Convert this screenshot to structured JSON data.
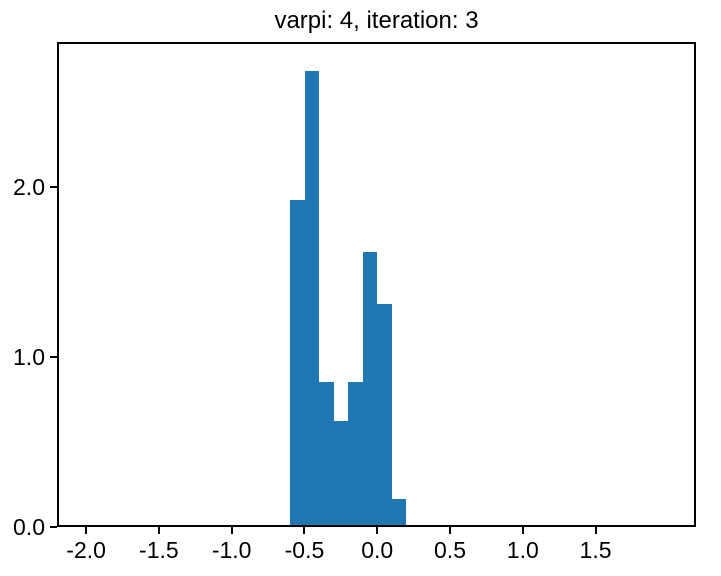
{
  "figure": {
    "background": "#ffffff",
    "text_color": "#000000",
    "spine_color": "#000000"
  },
  "chart_data": {
    "type": "bar",
    "subtype": "histogram",
    "title": "varpi: 4, iteration: 3",
    "xlabel": "",
    "ylabel": "",
    "bar_color": "#1f77b4",
    "grid": false,
    "legend": "none",
    "bin_width": 0.1,
    "bin_edges": [
      -0.6,
      -0.5,
      -0.4,
      -0.3,
      -0.2,
      -0.1,
      0.0,
      0.1,
      0.2
    ],
    "heights": [
      1.923,
      2.692,
      0.846,
      0.615,
      0.846,
      1.615,
      1.308,
      0.154
    ],
    "xlim": [
      -2.2,
      2.19
    ],
    "ylim": [
      0,
      2.85
    ],
    "xticks": [
      {
        "value": -2.0,
        "label": "-2.0"
      },
      {
        "value": -1.5,
        "label": "-1.5"
      },
      {
        "value": -1.0,
        "label": "-1.0"
      },
      {
        "value": -0.5,
        "label": "-0.5"
      },
      {
        "value": 0.0,
        "label": "0.0"
      },
      {
        "value": 0.5,
        "label": "0.5"
      },
      {
        "value": 1.0,
        "label": "1.0"
      },
      {
        "value": 1.5,
        "label": "1.5"
      }
    ],
    "yticks": [
      {
        "value": 0.0,
        "label": "0.0"
      },
      {
        "value": 1.0,
        "label": "1.0"
      },
      {
        "value": 2.0,
        "label": "2.0"
      }
    ]
  }
}
